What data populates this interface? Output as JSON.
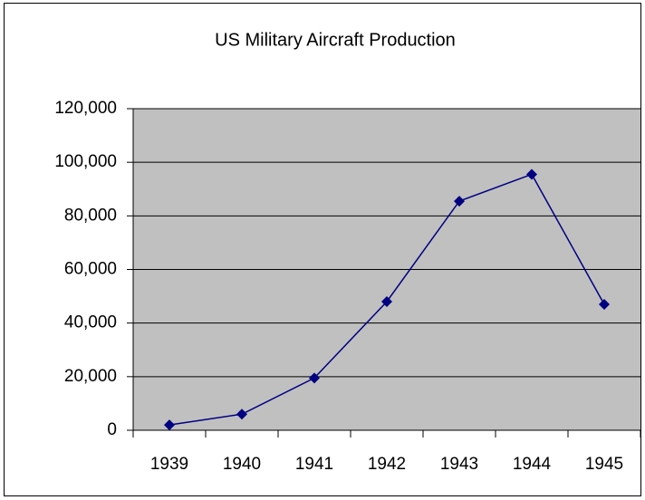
{
  "chart_data": {
    "type": "line",
    "title": "US Military Aircraft Production",
    "categories": [
      "1939",
      "1940",
      "1941",
      "1942",
      "1943",
      "1944",
      "1945"
    ],
    "values": [
      2000,
      6000,
      19500,
      48000,
      85500,
      95500,
      47000
    ],
    "color": "#000080",
    "plot_background": "#c0c0c0",
    "ylim": [
      0,
      120000
    ],
    "yticks": [
      0,
      {
        "value": 20000,
        "label": "20,000"
      },
      {
        "value": 40000,
        "label": "40,000"
      },
      {
        "value": 60000,
        "label": "60,000"
      },
      {
        "value": 80000,
        "label": "80,000"
      },
      {
        "value": 100000,
        "label": "100,000"
      },
      {
        "value": 120000,
        "label": "120,000"
      }
    ],
    "grid": true
  }
}
